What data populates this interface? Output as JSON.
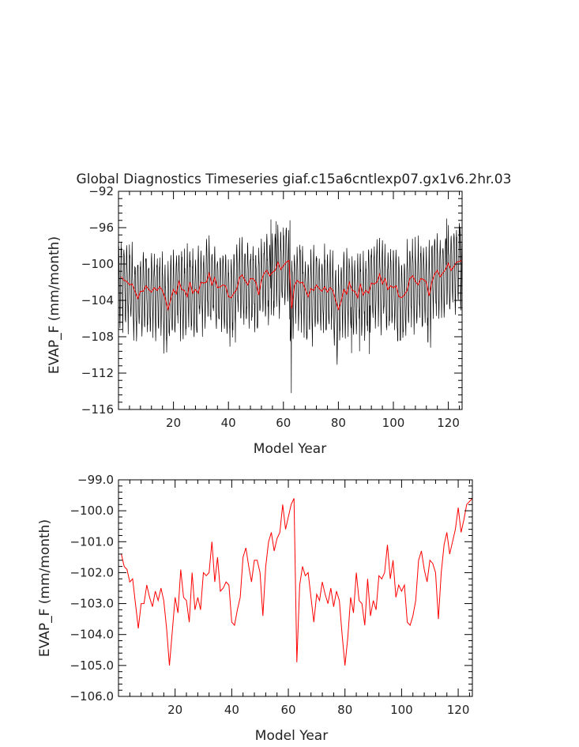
{
  "chart_data": [
    {
      "type": "line",
      "title": "Global Diagnostics Timeseries giaf.c15a6cntlexp07.gx1v6.2hr.03",
      "xlabel": "Model Year",
      "ylabel": "EVAP_F (mm/month)",
      "xlim": [
        0,
        125
      ],
      "ylim": [
        -116,
        -92
      ],
      "xticks": [
        20,
        40,
        60,
        80,
        100,
        120
      ],
      "yticks": [
        -116,
        -112,
        -108,
        -104,
        -100,
        -96,
        -92
      ],
      "ytick_labels": [
        "−116",
        "−112",
        "−108",
        "−104",
        "−100",
        "−96",
        "−92"
      ],
      "xtick_labels": [
        "20",
        "40",
        "60",
        "80",
        "100",
        "120"
      ],
      "series": [
        {
          "role": "monthly",
          "color": "#000000",
          "x_start": 0.0417,
          "x_step": 0.0833333,
          "monthly_anomaly": [
            3.2,
            2.4,
            1.1,
            -0.6,
            -2.4,
            -3.6,
            -4.3,
            -3.4,
            -1.6,
            0.4,
            2.1,
            3.3
          ],
          "extremes": [
            {
              "x": 55.5,
              "y": -95.1
            },
            {
              "x": 57.4,
              "y": -95.3
            },
            {
              "x": 62.4,
              "y": -95.2
            },
            {
              "x": 62.9,
              "y": -114.2
            },
            {
              "x": 84.8,
              "y": -109.8
            },
            {
              "x": 87.7,
              "y": -109.6
            },
            {
              "x": 91.3,
              "y": -109.9
            },
            {
              "x": 113.5,
              "y": -109.2
            },
            {
              "x": 119.4,
              "y": -95.0
            },
            {
              "x": 124.4,
              "y": -95.9
            }
          ]
        },
        {
          "role": "annual",
          "color": "#ff0000",
          "x": [
            1,
            2,
            3,
            4,
            5,
            6,
            7,
            8,
            9,
            10,
            11,
            12,
            13,
            14,
            15,
            16,
            17,
            18,
            19,
            20,
            21,
            22,
            23,
            24,
            25,
            26,
            27,
            28,
            29,
            30,
            31,
            32,
            33,
            34,
            35,
            36,
            37,
            38,
            39,
            40,
            41,
            42,
            43,
            44,
            45,
            46,
            47,
            48,
            49,
            50,
            51,
            52,
            53,
            54,
            55,
            56,
            57,
            58,
            59,
            60,
            61,
            62,
            63,
            64,
            65,
            66,
            67,
            68,
            69,
            70,
            71,
            72,
            73,
            74,
            75,
            76,
            77,
            78,
            79,
            80,
            81,
            82,
            83,
            84,
            85,
            86,
            87,
            88,
            89,
            90,
            91,
            92,
            93,
            94,
            95,
            96,
            97,
            98,
            99,
            100,
            101,
            102,
            103,
            104,
            105,
            106,
            107,
            108,
            109,
            110,
            111,
            112,
            113,
            114,
            115,
            116,
            117,
            118,
            119,
            120,
            121,
            122,
            123,
            124,
            125
          ],
          "values": [
            -101.4,
            -101.8,
            -101.9,
            -102.3,
            -102.2,
            -103.0,
            -103.8,
            -103.0,
            -103.0,
            -102.4,
            -102.8,
            -103.1,
            -102.6,
            -102.9,
            -102.5,
            -102.9,
            -103.8,
            -105.0,
            -103.9,
            -102.8,
            -103.3,
            -101.9,
            -102.8,
            -102.9,
            -103.6,
            -102.0,
            -103.2,
            -102.8,
            -103.2,
            -102.0,
            -102.1,
            -102.0,
            -101.0,
            -102.3,
            -101.5,
            -102.6,
            -102.5,
            -102.3,
            -102.4,
            -103.6,
            -103.7,
            -103.2,
            -102.8,
            -101.5,
            -101.2,
            -101.8,
            -102.3,
            -101.6,
            -101.6,
            -102.0,
            -103.4,
            -101.8,
            -101.0,
            -100.7,
            -101.3,
            -100.9,
            -100.7,
            -99.8,
            -100.6,
            -100.2,
            -99.8,
            -99.6,
            -104.9,
            -102.4,
            -101.8,
            -102.1,
            -102.0,
            -102.8,
            -103.6,
            -102.7,
            -102.9,
            -102.3,
            -102.7,
            -103.0,
            -102.5,
            -103.1,
            -102.6,
            -102.9,
            -104.0,
            -105.0,
            -104.1,
            -102.8,
            -103.3,
            -102.0,
            -102.9,
            -103.0,
            -103.7,
            -102.2,
            -103.4,
            -102.9,
            -103.2,
            -102.1,
            -102.2,
            -102.0,
            -101.1,
            -102.2,
            -101.6,
            -102.8,
            -102.4,
            -102.6,
            -102.4,
            -103.6,
            -103.7,
            -103.4,
            -102.9,
            -101.6,
            -101.3,
            -101.9,
            -102.3,
            -101.6,
            -101.7,
            -102.0,
            -103.5,
            -102.0,
            -101.1,
            -100.7,
            -101.4,
            -101.0,
            -100.6,
            -99.9,
            -100.7,
            -100.3,
            -99.8,
            -99.7,
            -99.6
          ]
        }
      ]
    },
    {
      "type": "line",
      "title": "",
      "xlabel": "Model Year",
      "ylabel": "EVAP_F (mm/month)",
      "xlim": [
        0,
        125
      ],
      "ylim": [
        -106.0,
        -99.0
      ],
      "xticks": [
        20,
        40,
        60,
        80,
        100,
        120
      ],
      "yticks": [
        -106.0,
        -105.0,
        -104.0,
        -103.0,
        -102.0,
        -101.0,
        -100.0,
        -99.0
      ],
      "ytick_labels": [
        "−106.0",
        "−105.0",
        "−104.0",
        "−103.0",
        "−102.0",
        "−101.0",
        "−100.0",
        "−99.0"
      ],
      "xtick_labels": [
        "20",
        "40",
        "60",
        "80",
        "100",
        "120"
      ],
      "series": [
        {
          "role": "annual",
          "color": "#ff0000",
          "source": 0
        }
      ]
    }
  ]
}
